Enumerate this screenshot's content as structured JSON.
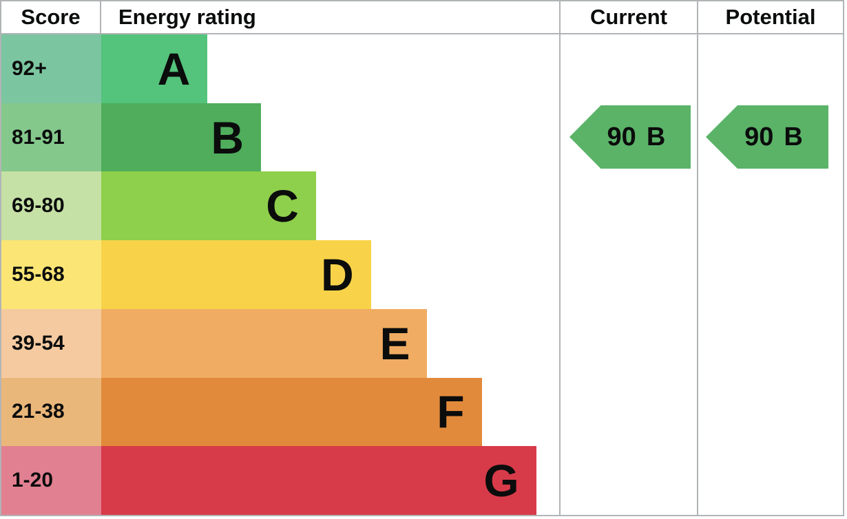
{
  "header": {
    "score": "Score",
    "energy_rating": "Energy rating",
    "current": "Current",
    "potential": "Potential"
  },
  "bands": [
    {
      "score": "92+",
      "letter": "A",
      "score_bg": "#7bc5a0",
      "bar_bg": "#54c37c",
      "bar_width_pct": 23.2
    },
    {
      "score": "81-91",
      "letter": "B",
      "score_bg": "#84c88c",
      "bar_bg": "#4fad5b",
      "bar_width_pct": 34.9
    },
    {
      "score": "69-80",
      "letter": "C",
      "score_bg": "#c6e1a5",
      "bar_bg": "#8ecf4b",
      "bar_width_pct": 46.9
    },
    {
      "score": "55-68",
      "letter": "D",
      "score_bg": "#fbe675",
      "bar_bg": "#f8d349",
      "bar_width_pct": 58.9
    },
    {
      "score": "39-54",
      "letter": "E",
      "score_bg": "#f5caa0",
      "bar_bg": "#f0ac62",
      "bar_width_pct": 71.2
    },
    {
      "score": "21-38",
      "letter": "F",
      "score_bg": "#eab77a",
      "bar_bg": "#e28a3b",
      "bar_width_pct": 83.1
    },
    {
      "score": "1-20",
      "letter": "G",
      "score_bg": "#e18091",
      "bar_bg": "#d73b49",
      "bar_width_pct": 95.0
    }
  ],
  "current": {
    "value": 90,
    "band": "B",
    "arrow_color": "#5bb368",
    "band_row_index": 1
  },
  "potential": {
    "value": 90,
    "band": "B",
    "arrow_color": "#5bb368",
    "band_row_index": 1
  },
  "colors": {
    "border": "#b1b4b6",
    "text": "#0b0c0c",
    "background": "#ffffff"
  },
  "chart_data": {
    "type": "bar",
    "title": "Energy rating",
    "columns": [
      "Score",
      "Energy rating",
      "Current",
      "Potential"
    ],
    "categories": [
      "A",
      "B",
      "C",
      "D",
      "E",
      "F",
      "G"
    ],
    "score_ranges": [
      "92+",
      "81-91",
      "69-80",
      "55-68",
      "39-54",
      "21-38",
      "1-20"
    ],
    "bar_lengths_pct": [
      23.2,
      34.9,
      46.9,
      58.9,
      71.2,
      83.1,
      95.0
    ],
    "band_colors": [
      "#54c37c",
      "#4fad5b",
      "#8ecf4b",
      "#f8d349",
      "#f0ac62",
      "#e28a3b",
      "#d73b49"
    ],
    "score_cell_colors": [
      "#7bc5a0",
      "#84c88c",
      "#c6e1a5",
      "#fbe675",
      "#f5caa0",
      "#eab77a",
      "#e18091"
    ],
    "markers": [
      {
        "name": "Current",
        "value": 90,
        "band": "B"
      },
      {
        "name": "Potential",
        "value": 90,
        "band": "B"
      }
    ],
    "legend_position": "none",
    "grid": false
  }
}
